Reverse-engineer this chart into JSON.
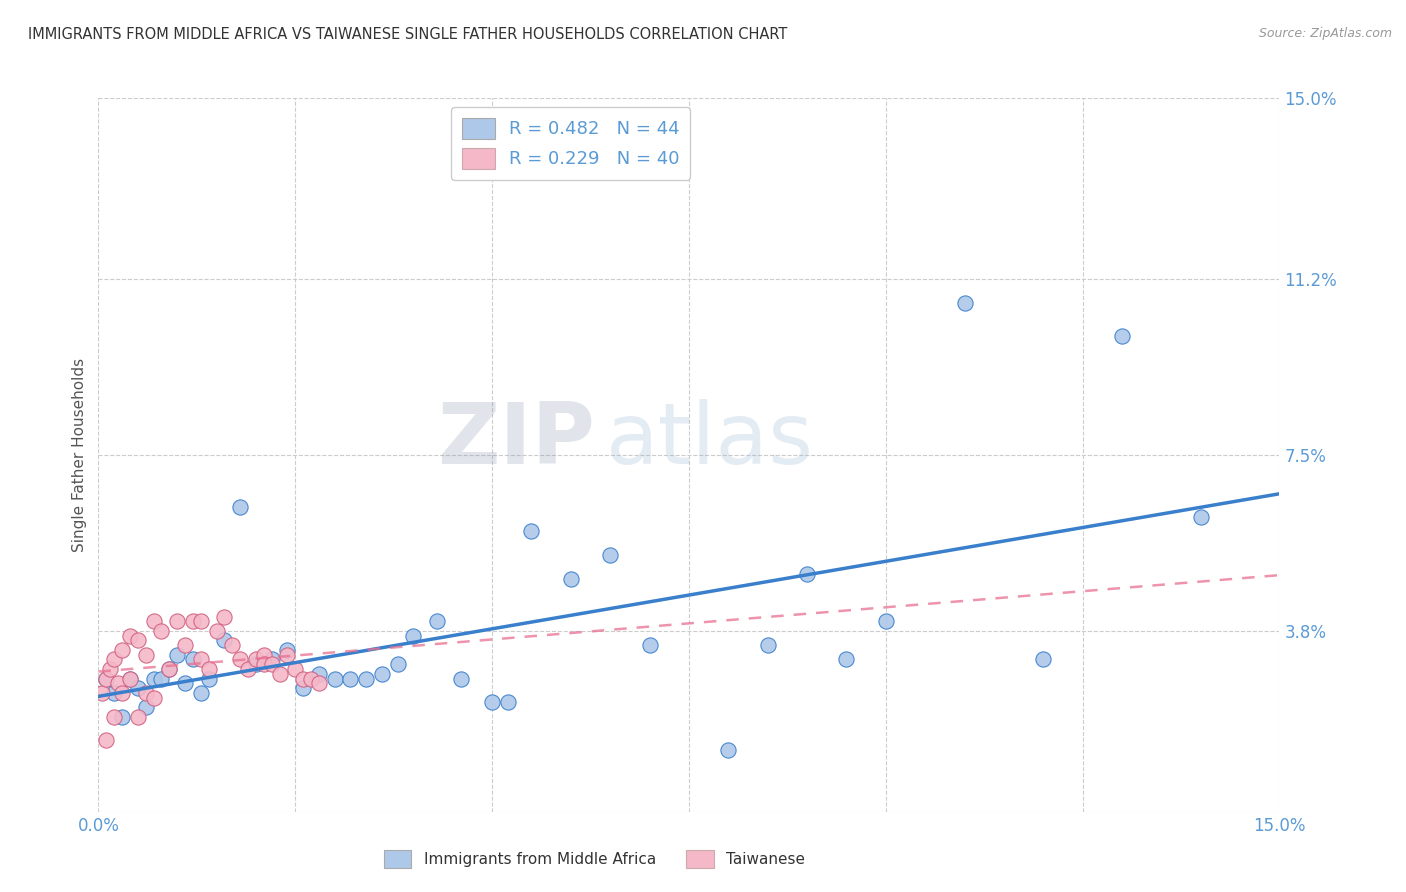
{
  "title": "IMMIGRANTS FROM MIDDLE AFRICA VS TAIWANESE SINGLE FATHER HOUSEHOLDS CORRELATION CHART",
  "source": "Source: ZipAtlas.com",
  "ylabel": "Single Father Households",
  "xmin": 0.0,
  "xmax": 0.15,
  "ymin": 0.0,
  "ymax": 0.15,
  "yticks": [
    0.0,
    0.038,
    0.075,
    0.112,
    0.15
  ],
  "ytick_labels": [
    "",
    "3.8%",
    "7.5%",
    "11.2%",
    "15.0%"
  ],
  "xticks": [
    0.0,
    0.025,
    0.05,
    0.075,
    0.1,
    0.125,
    0.15
  ],
  "xtick_labels": [
    "0.0%",
    "",
    "",
    "",
    "",
    "",
    "15.0%"
  ],
  "legend_r1": "R = 0.482",
  "legend_n1": "N = 44",
  "legend_r2": "R = 0.229",
  "legend_n2": "N = 40",
  "legend_label1": "Immigrants from Middle Africa",
  "legend_label2": "Taiwanese",
  "blue_color": "#adc8e8",
  "pink_color": "#f5b8c8",
  "line_blue": "#3a7fcc",
  "line_pink": "#e87090",
  "axis_color": "#5b9bd5",
  "title_color": "#333333",
  "watermark_zip": "ZIP",
  "watermark_atlas": "atlas",
  "blue_scatter_x": [
    0.001,
    0.002,
    0.003,
    0.004,
    0.005,
    0.006,
    0.007,
    0.008,
    0.009,
    0.01,
    0.011,
    0.012,
    0.013,
    0.014,
    0.016,
    0.018,
    0.02,
    0.022,
    0.024,
    0.026,
    0.028,
    0.03,
    0.032,
    0.034,
    0.036,
    0.038,
    0.04,
    0.043,
    0.046,
    0.05,
    0.052,
    0.055,
    0.06,
    0.065,
    0.07,
    0.08,
    0.085,
    0.09,
    0.095,
    0.1,
    0.11,
    0.12,
    0.13,
    0.14
  ],
  "blue_scatter_y": [
    0.028,
    0.025,
    0.02,
    0.028,
    0.026,
    0.022,
    0.028,
    0.028,
    0.03,
    0.033,
    0.027,
    0.032,
    0.025,
    0.028,
    0.036,
    0.064,
    0.031,
    0.032,
    0.034,
    0.026,
    0.029,
    0.028,
    0.028,
    0.028,
    0.029,
    0.031,
    0.037,
    0.04,
    0.028,
    0.023,
    0.023,
    0.059,
    0.049,
    0.054,
    0.035,
    0.013,
    0.035,
    0.05,
    0.032,
    0.04,
    0.107,
    0.032,
    0.1,
    0.062
  ],
  "pink_scatter_x": [
    0.0005,
    0.001,
    0.001,
    0.0015,
    0.002,
    0.002,
    0.0025,
    0.003,
    0.003,
    0.004,
    0.004,
    0.005,
    0.005,
    0.006,
    0.006,
    0.007,
    0.007,
    0.008,
    0.009,
    0.01,
    0.011,
    0.012,
    0.013,
    0.013,
    0.014,
    0.015,
    0.016,
    0.017,
    0.018,
    0.019,
    0.02,
    0.021,
    0.021,
    0.022,
    0.023,
    0.024,
    0.025,
    0.026,
    0.027,
    0.028
  ],
  "pink_scatter_y": [
    0.025,
    0.028,
    0.015,
    0.03,
    0.032,
    0.02,
    0.027,
    0.034,
    0.025,
    0.037,
    0.028,
    0.036,
    0.02,
    0.033,
    0.025,
    0.04,
    0.024,
    0.038,
    0.03,
    0.04,
    0.035,
    0.04,
    0.032,
    0.04,
    0.03,
    0.038,
    0.041,
    0.035,
    0.032,
    0.03,
    0.032,
    0.033,
    0.031,
    0.031,
    0.029,
    0.033,
    0.03,
    0.028,
    0.028,
    0.027
  ],
  "grid_color": "#cccccc"
}
